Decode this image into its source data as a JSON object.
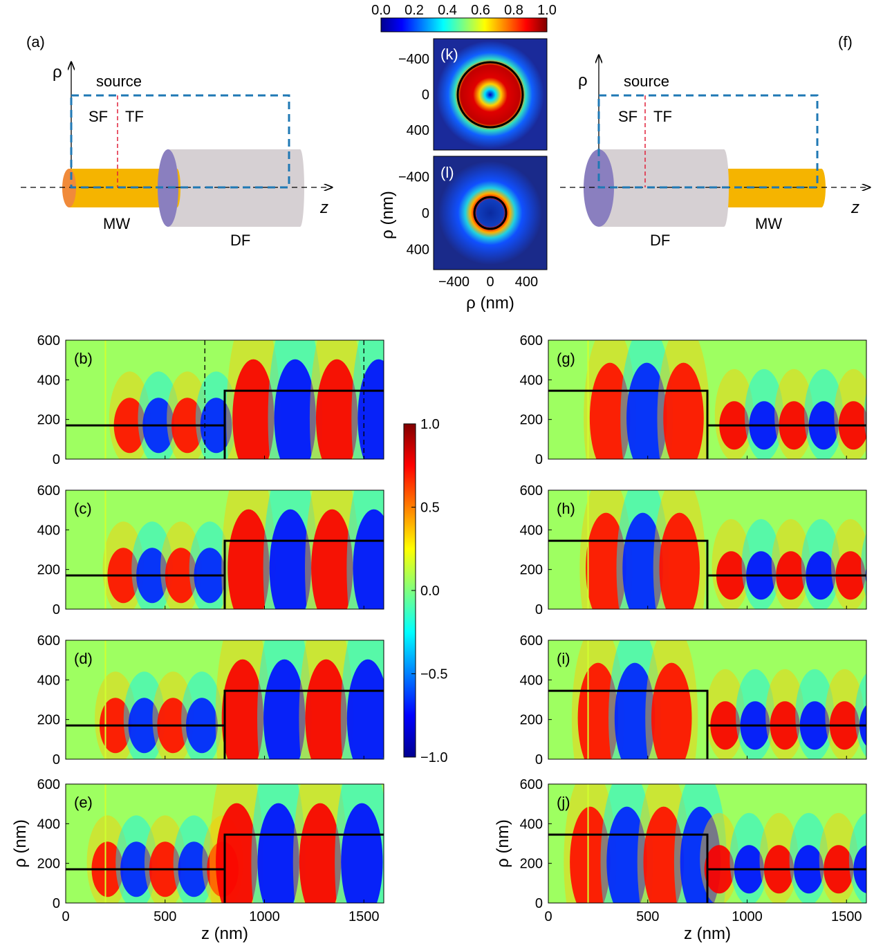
{
  "schematic_left": {
    "panel_label": "(a)",
    "rho_label": "ρ",
    "source_label": "source",
    "sf_label": "SF",
    "tf_label": "TF",
    "z_label": "z",
    "mw_label": "MW",
    "df_label": "DF"
  },
  "schematic_right": {
    "panel_label": "(f)",
    "rho_label": "ρ",
    "source_label": "source",
    "sf_label": "SF",
    "tf_label": "TF",
    "z_label": "z",
    "mw_label": "MW",
    "df_label": "DF"
  },
  "colors": {
    "mw_gold": "#f5b400",
    "mw_cap": "#f08a3a",
    "df_grey": "#d6d0d3",
    "df_cap": "#8a7fbf",
    "box_blue": "#1f78b4",
    "source_red": "#e0203a"
  },
  "colorbar_top": {
    "tick_labels": [
      "0.0",
      "0.2",
      "0.4",
      "0.6",
      "0.8",
      "1.0"
    ],
    "range": [
      0,
      1
    ]
  },
  "colorbar_mid": {
    "tick_labels": [
      "1.0",
      "0.5",
      "0.0",
      "−0.5",
      "−1.0"
    ],
    "range": [
      -1,
      1
    ]
  },
  "cross_sections": {
    "ylabel": "ρ (nm)",
    "xlabel": "ρ (nm)",
    "y_ticks": [
      "−400",
      "0",
      "400"
    ],
    "x_ticks": [
      "−400",
      "0",
      "400"
    ],
    "panels": [
      {
        "label": "(k)"
      },
      {
        "label": "(l)"
      }
    ]
  },
  "chart_data": [
    {
      "type": "heatmap",
      "panel": "(b)",
      "xlabel": "",
      "ylabel": "",
      "xlim": [
        0,
        1600
      ],
      "ylim": [
        0,
        600
      ],
      "x_ticks": [
        "0",
        "500",
        "1000",
        "1500"
      ],
      "y_ticks": [
        "0",
        "200",
        "400",
        "600"
      ],
      "boundary": [
        [
          0,
          170
        ],
        [
          800,
          170
        ],
        [
          800,
          345
        ],
        [
          1600,
          345
        ]
      ],
      "source_z": 200,
      "shift": 0.08,
      "dashed_z": [
        700,
        1500
      ]
    },
    {
      "type": "heatmap",
      "panel": "(c)",
      "xlabel": "",
      "ylabel": "",
      "xlim": [
        0,
        1600
      ],
      "ylim": [
        0,
        600
      ],
      "x_ticks": [
        "0",
        "500",
        "1000",
        "1500"
      ],
      "y_ticks": [
        "0",
        "200",
        "400",
        "600"
      ],
      "boundary": [
        [
          0,
          170
        ],
        [
          800,
          170
        ],
        [
          800,
          345
        ],
        [
          1600,
          345
        ]
      ],
      "source_z": 200,
      "shift": 0.0
    },
    {
      "type": "heatmap",
      "panel": "(d)",
      "xlabel": "",
      "ylabel": "",
      "xlim": [
        0,
        1600
      ],
      "ylim": [
        0,
        600
      ],
      "x_ticks": [
        "0",
        "500",
        "1000",
        "1500"
      ],
      "y_ticks": [
        "0",
        "200",
        "400",
        "600"
      ],
      "boundary": [
        [
          0,
          170
        ],
        [
          800,
          170
        ],
        [
          800,
          345
        ],
        [
          1600,
          345
        ]
      ],
      "source_z": 200,
      "shift": -0.1
    },
    {
      "type": "heatmap",
      "panel": "(e)",
      "xlabel": "z (nm)",
      "ylabel": "ρ (nm)",
      "xlim": [
        0,
        1600
      ],
      "ylim": [
        0,
        600
      ],
      "x_ticks": [
        "0",
        "500",
        "1000",
        "1500"
      ],
      "y_ticks": [
        "0",
        "200",
        "400",
        "600"
      ],
      "boundary": [
        [
          0,
          170
        ],
        [
          800,
          170
        ],
        [
          800,
          345
        ],
        [
          1600,
          345
        ]
      ],
      "source_z": 200,
      "shift": -0.2
    },
    {
      "type": "heatmap",
      "panel": "(g)",
      "xlabel": "",
      "ylabel": "",
      "xlim": [
        0,
        1600
      ],
      "ylim": [
        0,
        600
      ],
      "x_ticks": [
        "0",
        "500",
        "1000",
        "1500"
      ],
      "y_ticks": [
        "0",
        "200",
        "400",
        "600"
      ],
      "boundary": [
        [
          0,
          345
        ],
        [
          800,
          345
        ],
        [
          800,
          170
        ],
        [
          1600,
          170
        ]
      ],
      "source_z": 200,
      "shift": 0.05
    },
    {
      "type": "heatmap",
      "panel": "(h)",
      "xlabel": "",
      "ylabel": "",
      "xlim": [
        0,
        1600
      ],
      "ylim": [
        0,
        600
      ],
      "x_ticks": [
        "0",
        "500",
        "1000",
        "1500"
      ],
      "y_ticks": [
        "0",
        "200",
        "400",
        "600"
      ],
      "boundary": [
        [
          0,
          345
        ],
        [
          800,
          345
        ],
        [
          800,
          170
        ],
        [
          1600,
          170
        ]
      ],
      "source_z": 200,
      "shift": 0.0
    },
    {
      "type": "heatmap",
      "panel": "(i)",
      "xlabel": "",
      "ylabel": "",
      "xlim": [
        0,
        1600
      ],
      "ylim": [
        0,
        600
      ],
      "x_ticks": [
        "0",
        "500",
        "1000",
        "1500"
      ],
      "y_ticks": [
        "0",
        "200",
        "400",
        "600"
      ],
      "boundary": [
        [
          0,
          345
        ],
        [
          800,
          345
        ],
        [
          800,
          170
        ],
        [
          1600,
          170
        ]
      ],
      "source_z": 200,
      "shift": -0.1
    },
    {
      "type": "heatmap",
      "panel": "(j)",
      "xlabel": "z (nm)",
      "ylabel": "ρ (nm)",
      "xlim": [
        0,
        1600
      ],
      "ylim": [
        0,
        600
      ],
      "x_ticks": [
        "0",
        "500",
        "1000",
        "1500"
      ],
      "y_ticks": [
        "0",
        "200",
        "400",
        "600"
      ],
      "boundary": [
        [
          0,
          345
        ],
        [
          800,
          345
        ],
        [
          800,
          170
        ],
        [
          1600,
          170
        ]
      ],
      "source_z": 200,
      "shift": -0.2
    }
  ]
}
